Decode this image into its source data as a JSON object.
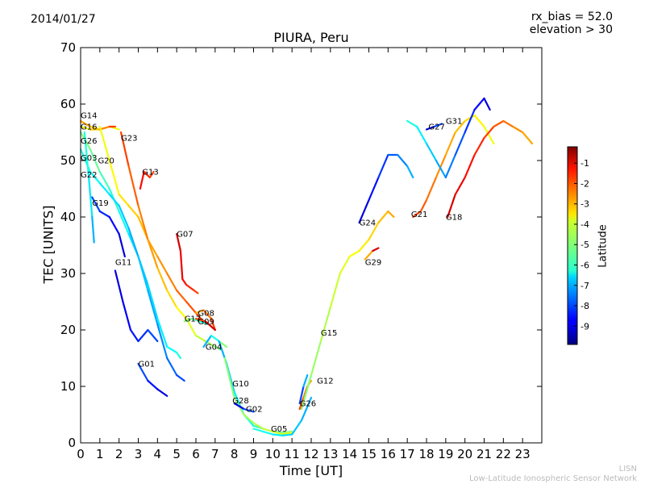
{
  "header": {
    "date": "2014/01/27",
    "rx_bias": "rx_bias = 52.0",
    "elevation": "elevation > 30"
  },
  "footer": {
    "credit_short": "LISN",
    "credit_long": "Low-Latitude Ionospheric Sensor Network"
  },
  "colorbar": {
    "label": "Latitude",
    "ticks": [
      "-1",
      "-2",
      "-3",
      "-4",
      "-5",
      "-6",
      "-7",
      "-8",
      "-9"
    ],
    "range": [
      -9.9,
      -0.2
    ],
    "colormap": "jet"
  },
  "chart_data": {
    "type": "line",
    "title": "PIURA, Peru",
    "xlabel": "Time [UT]",
    "ylabel": "TEC [UNITS]",
    "xlim": [
      0,
      24
    ],
    "ylim": [
      0,
      70
    ],
    "xticks": [
      "0",
      "1",
      "2",
      "3",
      "4",
      "5",
      "6",
      "7",
      "8",
      "9",
      "10",
      "11",
      "12",
      "13",
      "14",
      "15",
      "16",
      "17",
      "18",
      "19",
      "20",
      "21",
      "22",
      "23"
    ],
    "yticks": [
      "0",
      "10",
      "20",
      "30",
      "40",
      "50",
      "60",
      "70"
    ],
    "grid": false,
    "series": [
      {
        "name": "G14",
        "label_at": [
          0.0,
          57.5
        ],
        "lat": [
          -3,
          -4
        ],
        "points": [
          [
            0,
            57
          ],
          [
            0.5,
            56
          ],
          [
            1,
            55.5
          ],
          [
            1.5,
            56
          ],
          [
            2,
            55.5
          ]
        ]
      },
      {
        "name": "G16",
        "label_at": [
          0.0,
          55.5
        ],
        "lat": [
          -4,
          -3,
          -2
        ],
        "points": [
          [
            0,
            56
          ],
          [
            0.5,
            55.5
          ],
          [
            1,
            55.5
          ],
          [
            1.5,
            56
          ],
          [
            1.8,
            56
          ]
        ]
      },
      {
        "name": "G26",
        "label_at": [
          0.0,
          53.0
        ],
        "lat": [
          -5,
          -6,
          -7,
          -8
        ],
        "points": [
          [
            0,
            55
          ],
          [
            0.5,
            52
          ],
          [
            1,
            48
          ],
          [
            1.5,
            45
          ],
          [
            2,
            41
          ],
          [
            2.5,
            37
          ],
          [
            3,
            33
          ],
          [
            3.5,
            27
          ],
          [
            4,
            21
          ],
          [
            4.5,
            15
          ],
          [
            5,
            12
          ],
          [
            5.4,
            11
          ]
        ]
      },
      {
        "name": "G03",
        "label_at": [
          0.0,
          50.0
        ],
        "lat": [
          -6,
          -7,
          -6
        ],
        "points": [
          [
            0,
            52
          ],
          [
            0.5,
            48
          ],
          [
            1,
            46
          ],
          [
            1.5,
            44
          ],
          [
            2,
            42
          ],
          [
            2.5,
            38
          ],
          [
            3,
            33
          ],
          [
            3.5,
            28
          ],
          [
            4,
            22
          ],
          [
            4.5,
            17
          ],
          [
            5,
            16
          ],
          [
            5.2,
            15
          ]
        ]
      },
      {
        "name": "G20",
        "label_at": [
          0.9,
          49.5
        ],
        "lat": [
          -4,
          -3,
          -2
        ],
        "points": [
          [
            1,
            56
          ],
          [
            1.5,
            50
          ],
          [
            2,
            44
          ],
          [
            2.5,
            42
          ],
          [
            3,
            40
          ],
          [
            3.5,
            36
          ],
          [
            4,
            33
          ],
          [
            4.5,
            30
          ],
          [
            5,
            27
          ],
          [
            5.5,
            25
          ],
          [
            6,
            23
          ],
          [
            6.5,
            21
          ]
        ]
      },
      {
        "name": "G22",
        "label_at": [
          0.0,
          47.0
        ],
        "lat": [
          -6,
          -7
        ],
        "points": [
          [
            0.2,
            55
          ],
          [
            0.4,
            48
          ],
          [
            0.6,
            40
          ],
          [
            0.7,
            35.5
          ]
        ]
      },
      {
        "name": "G19",
        "label_at": [
          0.6,
          42.0
        ],
        "lat": [
          -8,
          -9
        ],
        "points": [
          [
            0.6,
            43.5
          ],
          [
            1,
            41
          ],
          [
            1.5,
            40
          ],
          [
            2,
            37
          ],
          [
            2.3,
            33
          ]
        ]
      },
      {
        "name": "G23",
        "label_at": [
          2.1,
          53.5
        ],
        "lat": [
          -2,
          -3,
          -4,
          -5
        ],
        "points": [
          [
            2.1,
            55
          ],
          [
            2.5,
            49
          ],
          [
            3,
            42
          ],
          [
            3.5,
            36
          ],
          [
            4,
            31
          ],
          [
            4.5,
            27
          ],
          [
            5,
            24
          ],
          [
            5.5,
            22
          ],
          [
            6,
            19
          ],
          [
            6.5,
            18
          ],
          [
            7,
            17
          ],
          [
            7.3,
            16.5
          ]
        ]
      },
      {
        "name": "G13",
        "label_at": [
          3.2,
          47.5
        ],
        "lat": [
          -1.5,
          -2
        ],
        "points": [
          [
            3.1,
            45
          ],
          [
            3.3,
            48
          ],
          [
            3.6,
            47
          ],
          [
            3.8,
            48
          ]
        ]
      },
      {
        "name": "G11",
        "label_at": [
          1.8,
          31.5
        ],
        "lat": [
          -9,
          -8
        ],
        "points": [
          [
            1.8,
            30.5
          ],
          [
            2.2,
            25
          ],
          [
            2.6,
            20
          ],
          [
            3,
            18
          ],
          [
            3.5,
            20
          ],
          [
            4,
            18
          ]
        ]
      },
      {
        "name": "G07",
        "label_at": [
          5.0,
          36.5
        ],
        "lat": [
          -1,
          -2
        ],
        "points": [
          [
            5.0,
            37
          ],
          [
            5.2,
            34
          ],
          [
            5.3,
            29
          ],
          [
            5.5,
            28
          ],
          [
            5.9,
            27
          ],
          [
            6.1,
            26.5
          ]
        ]
      },
      {
        "name": "G17",
        "label_at": [
          5.4,
          21.5
        ],
        "lat": [
          -5,
          -6
        ],
        "points": [
          [
            5.4,
            21.5
          ],
          [
            5.8,
            22
          ],
          [
            6.2,
            21.5
          ],
          [
            6.6,
            21
          ]
        ]
      },
      {
        "name": "G08",
        "label_at": [
          6.1,
          22.5
        ],
        "lat": [
          -3,
          -2
        ],
        "points": [
          [
            6.0,
            23
          ],
          [
            6.4,
            23.5
          ],
          [
            6.8,
            22
          ],
          [
            7.0,
            20
          ]
        ]
      },
      {
        "name": "G09",
        "label_at": [
          6.1,
          21.0
        ],
        "lat": [
          -2,
          -1
        ],
        "points": [
          [
            6.0,
            22
          ],
          [
            6.5,
            21.5
          ],
          [
            7.0,
            20
          ]
        ]
      },
      {
        "name": "G04",
        "label_at": [
          6.5,
          16.5
        ],
        "lat": [
          -7,
          -6,
          -5
        ],
        "points": [
          [
            6.4,
            17
          ],
          [
            6.8,
            19
          ],
          [
            7.2,
            18
          ],
          [
            7.6,
            17
          ]
        ]
      },
      {
        "name": "G01",
        "label_at": [
          3.0,
          13.5
        ],
        "lat": [
          -8,
          -9
        ],
        "points": [
          [
            3.0,
            14
          ],
          [
            3.5,
            11
          ],
          [
            4,
            9.5
          ],
          [
            4.5,
            8.3
          ]
        ]
      },
      {
        "name": "G10",
        "label_at": [
          7.9,
          10.0
        ],
        "lat": [
          -7,
          -6,
          -5
        ],
        "points": [
          [
            7.2,
            18
          ],
          [
            7.6,
            14
          ],
          [
            8,
            9
          ],
          [
            8.5,
            5
          ],
          [
            9,
            3
          ],
          [
            9.5,
            2.5
          ],
          [
            10,
            2
          ],
          [
            10.5,
            1.8
          ],
          [
            11,
            2
          ]
        ]
      },
      {
        "name": "G28",
        "label_at": [
          7.9,
          7.0
        ],
        "lat": [
          -5,
          -4
        ],
        "points": [
          [
            7.5,
            15
          ],
          [
            8,
            8
          ],
          [
            8.5,
            5
          ],
          [
            9,
            3.5
          ],
          [
            9.5,
            2.5
          ],
          [
            10,
            2
          ],
          [
            10.5,
            1.5
          ],
          [
            11,
            1.8
          ]
        ]
      },
      {
        "name": "G02",
        "label_at": [
          8.6,
          5.5
        ],
        "lat": [
          -9,
          -8
        ],
        "points": [
          [
            8,
            7
          ],
          [
            8.5,
            6
          ],
          [
            9,
            5.5
          ]
        ]
      },
      {
        "name": "G05",
        "label_at": [
          9.9,
          2.0
        ],
        "lat": [
          -6,
          -7
        ],
        "points": [
          [
            9,
            2.5
          ],
          [
            9.5,
            2
          ],
          [
            10,
            1.5
          ],
          [
            10.5,
            1.3
          ],
          [
            11,
            1.5
          ],
          [
            11.5,
            4
          ],
          [
            12,
            8
          ]
        ]
      },
      {
        "name": "G26b",
        "hidden_name": true,
        "label_at": [
          11.4,
          6.5
        ],
        "lat": [
          -2,
          -3
        ],
        "points": [
          [
            11.4,
            6
          ],
          [
            11.6,
            8
          ],
          [
            11.8,
            10
          ],
          [
            12.0,
            11
          ]
        ]
      },
      {
        "name": "G12",
        "label_at": [
          12.3,
          10.5
        ],
        "lat": [
          -8,
          -7
        ],
        "points": [
          [
            11.4,
            7
          ],
          [
            11.6,
            10
          ],
          [
            11.8,
            12
          ]
        ]
      },
      {
        "name": "G15",
        "label_at": [
          12.5,
          19.0
        ],
        "lat": [
          -5,
          -4,
          -3
        ],
        "points": [
          [
            11.5,
            6
          ],
          [
            12,
            12
          ],
          [
            12.5,
            18
          ],
          [
            13,
            24
          ],
          [
            13.5,
            30
          ],
          [
            14,
            33
          ],
          [
            14.5,
            34
          ],
          [
            15,
            36
          ],
          [
            15.5,
            39
          ],
          [
            16,
            41
          ],
          [
            16.3,
            40
          ]
        ]
      },
      {
        "name": "G24",
        "label_at": [
          14.5,
          38.5
        ],
        "lat": [
          -9,
          -8,
          -7
        ],
        "points": [
          [
            14.5,
            39
          ],
          [
            15,
            43
          ],
          [
            15.5,
            47
          ],
          [
            16,
            51
          ],
          [
            16.5,
            51
          ],
          [
            17,
            49
          ],
          [
            17.3,
            47
          ]
        ]
      },
      {
        "name": "G29",
        "label_at": [
          14.8,
          31.5
        ],
        "lat": [
          -3,
          -2,
          -1
        ],
        "points": [
          [
            14.8,
            32.5
          ],
          [
            15.2,
            34
          ],
          [
            15.5,
            34.5
          ]
        ]
      },
      {
        "name": "G21",
        "label_at": [
          17.2,
          40.0
        ],
        "lat": [
          -2,
          -3,
          -4
        ],
        "points": [
          [
            17.3,
            40
          ],
          [
            17.7,
            41
          ],
          [
            18,
            43
          ],
          [
            18.5,
            47
          ],
          [
            19,
            51
          ],
          [
            19.5,
            55
          ],
          [
            20,
            57
          ],
          [
            20.5,
            58
          ],
          [
            21,
            56
          ],
          [
            21.5,
            53
          ]
        ]
      },
      {
        "name": "G18",
        "label_at": [
          19.0,
          39.5
        ],
        "lat": [
          -1,
          -2,
          -3
        ],
        "points": [
          [
            19.1,
            40
          ],
          [
            19.5,
            44
          ],
          [
            20,
            47
          ],
          [
            20.5,
            51
          ],
          [
            21,
            54
          ],
          [
            21.5,
            56
          ],
          [
            22,
            57
          ],
          [
            22.5,
            56
          ],
          [
            23,
            55
          ],
          [
            23.5,
            53
          ]
        ]
      },
      {
        "name": "G27",
        "label_at": [
          18.1,
          55.5
        ],
        "lat": [
          -9,
          -8
        ],
        "points": [
          [
            18,
            55.5
          ],
          [
            18.4,
            56
          ],
          [
            18.8,
            56.5
          ]
        ]
      },
      {
        "name": "G31",
        "label_at": [
          19.0,
          56.5
        ],
        "lat": [
          -6,
          -7,
          -8,
          -9
        ],
        "points": [
          [
            17,
            57
          ],
          [
            17.5,
            56
          ],
          [
            18,
            53
          ],
          [
            18.5,
            50
          ],
          [
            19,
            47
          ],
          [
            19.5,
            51
          ],
          [
            20,
            55
          ],
          [
            20.5,
            59
          ],
          [
            21,
            61
          ],
          [
            21.3,
            59
          ]
        ]
      }
    ]
  }
}
